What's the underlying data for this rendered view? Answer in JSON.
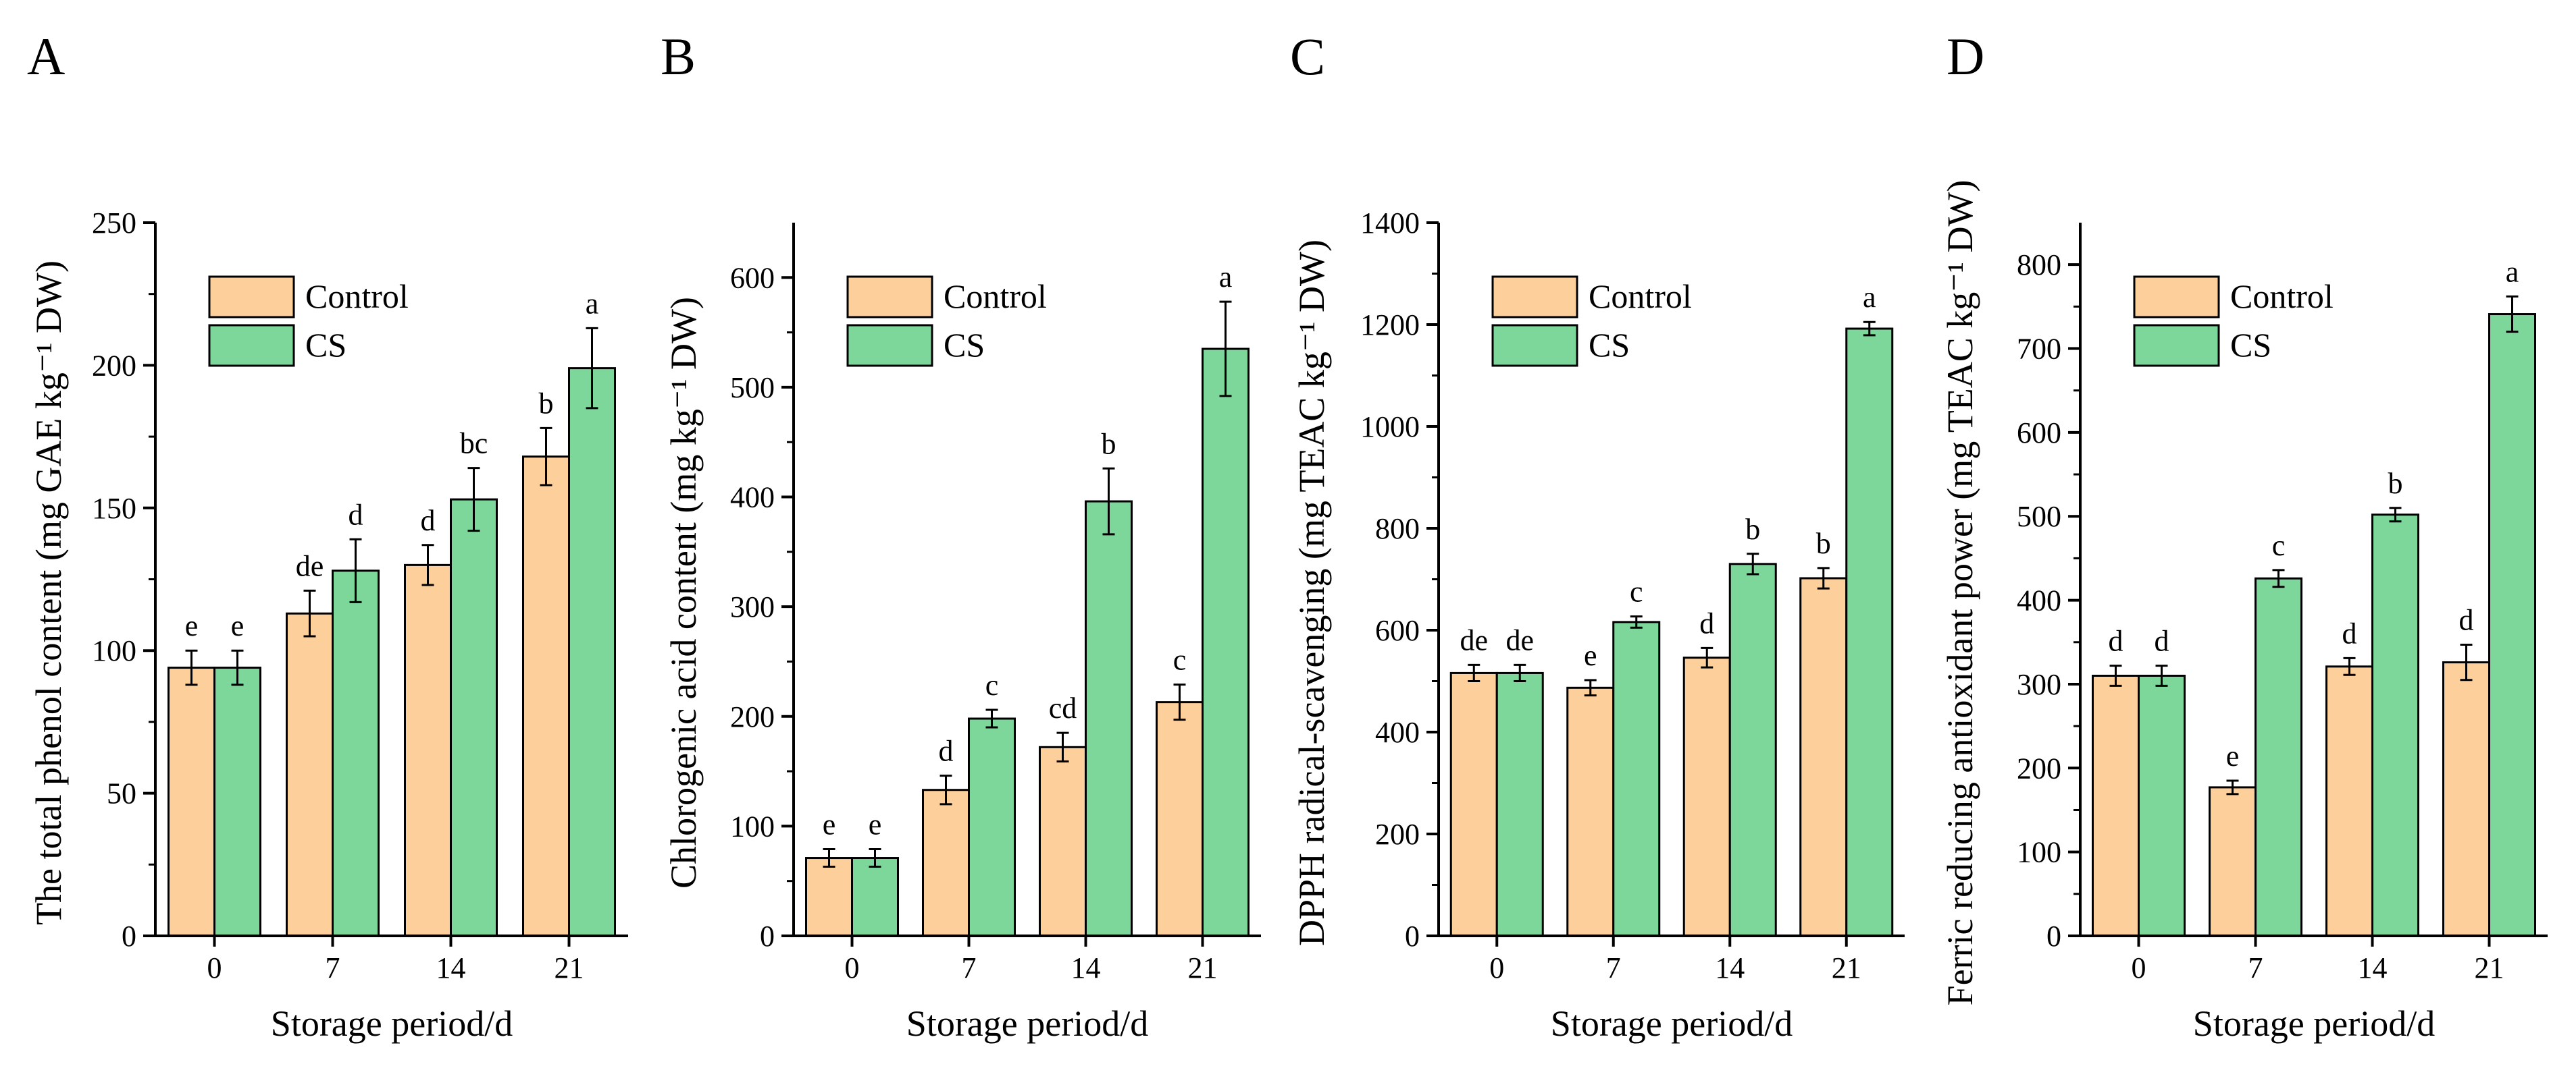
{
  "figure": {
    "colors": {
      "control": "#fdcf9a",
      "cs": "#7dd79b",
      "axis": "#000000"
    }
  },
  "chart_data": [
    {
      "panel_label": "A",
      "type": "bar",
      "xlabel": "Storage period/d",
      "ylabel": "The total phenol content (mg GAE kg⁻¹ DW)",
      "categories": [
        "0",
        "7",
        "14",
        "21"
      ],
      "ylim": [
        0,
        250
      ],
      "yticks": [
        0,
        50,
        100,
        150,
        200,
        250
      ],
      "legend": "top-left",
      "series": [
        {
          "name": "Control",
          "values": [
            94,
            113,
            130,
            168
          ],
          "errors": [
            6,
            8,
            7,
            10
          ],
          "letters": [
            "e",
            "de",
            "d",
            "b"
          ]
        },
        {
          "name": "CS",
          "values": [
            94,
            128,
            153,
            199
          ],
          "errors": [
            6,
            11,
            11,
            14
          ],
          "letters": [
            "e",
            "d",
            "bc",
            "a"
          ]
        }
      ]
    },
    {
      "panel_label": "B",
      "type": "bar",
      "xlabel": "Storage period/d",
      "ylabel": "Chlorogenic acid content (mg kg⁻¹ DW)",
      "categories": [
        "0",
        "7",
        "14",
        "21"
      ],
      "ylim": [
        0,
        650
      ],
      "yticks": [
        0,
        100,
        200,
        300,
        400,
        500,
        600
      ],
      "legend": "top-left",
      "series": [
        {
          "name": "Control",
          "values": [
            71,
            133,
            172,
            213
          ],
          "errors": [
            8,
            13,
            13,
            16
          ],
          "letters": [
            "e",
            "d",
            "cd",
            "c"
          ]
        },
        {
          "name": "CS",
          "values": [
            71,
            198,
            396,
            535
          ],
          "errors": [
            8,
            8,
            30,
            43
          ],
          "letters": [
            "e",
            "c",
            "b",
            "a"
          ]
        }
      ]
    },
    {
      "panel_label": "C",
      "type": "bar",
      "xlabel": "Storage period/d",
      "ylabel": "DPPH radical-scavenging (mg TEAC kg⁻¹ DW)",
      "categories": [
        "0",
        "7",
        "14",
        "21"
      ],
      "ylim": [
        0,
        1400
      ],
      "yticks": [
        0,
        200,
        400,
        600,
        800,
        1000,
        1200,
        1400
      ],
      "legend": "top-left",
      "series": [
        {
          "name": "Control",
          "values": [
            516,
            487,
            546,
            702
          ],
          "errors": [
            16,
            15,
            19,
            20
          ],
          "letters": [
            "de",
            "e",
            "d",
            "b"
          ]
        },
        {
          "name": "CS",
          "values": [
            516,
            616,
            730,
            1192
          ],
          "errors": [
            16,
            11,
            20,
            13
          ],
          "letters": [
            "de",
            "c",
            "b",
            "a"
          ]
        }
      ]
    },
    {
      "panel_label": "D",
      "type": "bar",
      "xlabel": "Storage period/d",
      "ylabel": "Ferric reducing antioxidant power (mg TEAC kg⁻¹ DW)",
      "categories": [
        "0",
        "7",
        "14",
        "21"
      ],
      "ylim": [
        0,
        850
      ],
      "yticks": [
        0,
        100,
        200,
        300,
        400,
        500,
        600,
        700,
        800
      ],
      "legend": "top-left",
      "series": [
        {
          "name": "Control",
          "values": [
            310,
            177,
            321,
            326
          ],
          "errors": [
            12,
            8,
            10,
            21
          ],
          "letters": [
            "d",
            "e",
            "d",
            "d"
          ]
        },
        {
          "name": "CS",
          "values": [
            310,
            426,
            502,
            741
          ],
          "errors": [
            12,
            10,
            8,
            21
          ],
          "letters": [
            "d",
            "c",
            "b",
            "a"
          ]
        }
      ]
    }
  ]
}
